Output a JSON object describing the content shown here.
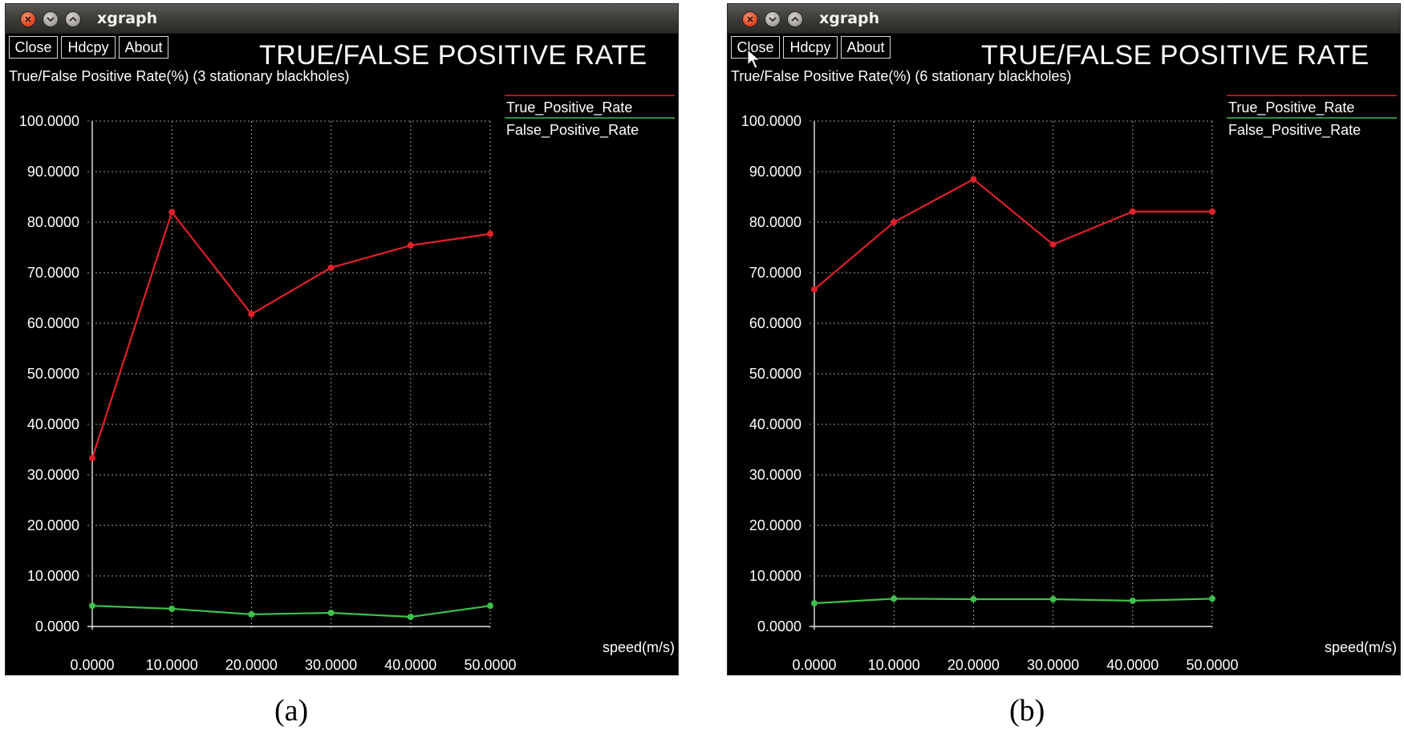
{
  "windows": [
    {
      "id": "a",
      "title": "xgraph",
      "buttons": [
        "Close",
        "Hdcpy",
        "About"
      ],
      "caption": "(a)",
      "chart_data": {
        "type": "line",
        "title": "TRUE/FALSE POSITIVE RATE",
        "subtitle": "True/False Positive Rate(%) (3 stationary blackholes)",
        "xlabel": "speed(m/s)",
        "x": [
          0,
          10,
          20,
          30,
          40,
          50
        ],
        "x_tick_labels": [
          "0.0000",
          "10.0000",
          "20.0000",
          "30.0000",
          "40.0000",
          "50.0000"
        ],
        "y_tick_labels": [
          "0.0000",
          "10.0000",
          "20.0000",
          "30.0000",
          "40.0000",
          "50.0000",
          "60.0000",
          "70.0000",
          "80.0000",
          "90.0000",
          "100.0000"
        ],
        "xlim": [
          0,
          50
        ],
        "ylim": [
          0,
          100
        ],
        "grid": true,
        "legend_position": "top-right",
        "series": [
          {
            "name": "True_Positive_Rate",
            "color": "#e0202a",
            "values": [
              33.3,
              82.0,
              61.8,
              71.0,
              75.4,
              77.7
            ]
          },
          {
            "name": "False_Positive_Rate",
            "color": "#3ec04a",
            "values": [
              4.1,
              3.5,
              2.4,
              2.7,
              1.9,
              4.1
            ]
          }
        ]
      }
    },
    {
      "id": "b",
      "title": "xgraph",
      "buttons": [
        "Close",
        "Hdcpy",
        "About"
      ],
      "caption": "(b)",
      "chart_data": {
        "type": "line",
        "title": "TRUE/FALSE POSITIVE RATE",
        "subtitle": "True/False Positive Rate(%) (6 stationary blackholes)",
        "xlabel": "speed(m/s)",
        "x": [
          0,
          10,
          20,
          30,
          40,
          50
        ],
        "x_tick_labels": [
          "0.0000",
          "10.0000",
          "20.0000",
          "30.0000",
          "40.0000",
          "50.0000"
        ],
        "y_tick_labels": [
          "0.0000",
          "10.0000",
          "20.0000",
          "30.0000",
          "40.0000",
          "50.0000",
          "60.0000",
          "70.0000",
          "80.0000",
          "90.0000",
          "100.0000"
        ],
        "xlim": [
          0,
          50
        ],
        "ylim": [
          0,
          100
        ],
        "grid": true,
        "legend_position": "top-right",
        "series": [
          {
            "name": "True_Positive_Rate",
            "color": "#e0202a",
            "values": [
              66.7,
              80.0,
              88.5,
              75.6,
              82.1,
              82.1
            ]
          },
          {
            "name": "False_Positive_Rate",
            "color": "#3ec04a",
            "values": [
              4.6,
              5.5,
              5.4,
              5.4,
              5.1,
              5.5
            ]
          }
        ]
      }
    }
  ]
}
